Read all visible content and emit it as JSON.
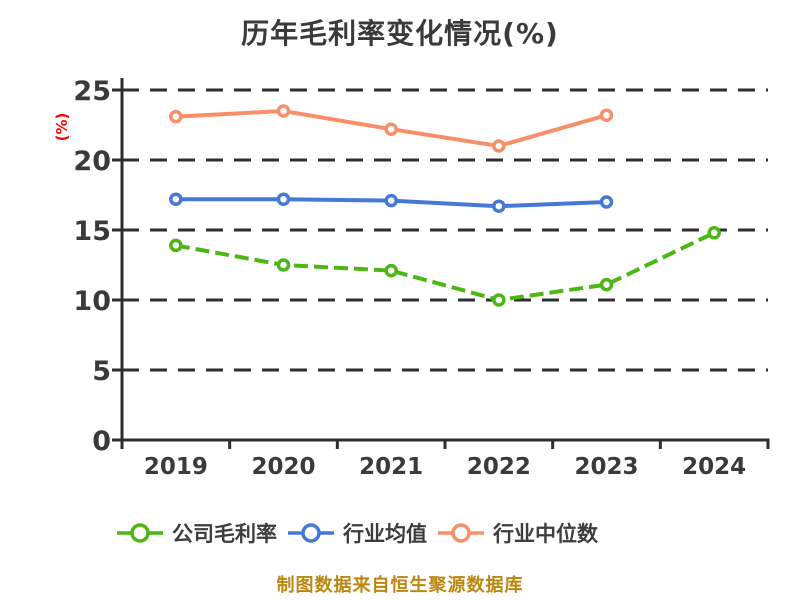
{
  "title": "历年毛利率变化情况(%)",
  "footer": "制图数据来自恒生聚源数据库",
  "colors": {
    "title_text": "#3a3a3a",
    "axis": "#2e2e2e",
    "grid": "#2e2e2e",
    "tick_text": "#3a3a3a",
    "ylabel_text": "#ff0000",
    "footer_text": "#bb8712",
    "marker_fill": "#ffffff"
  },
  "chart_data": {
    "type": "line",
    "title": "历年毛利率变化情况(%)",
    "ylabel": "(%)",
    "xlabel": "",
    "categories": [
      "2019",
      "2020",
      "2021",
      "2022",
      "2023",
      "2024"
    ],
    "series": [
      {
        "name": "公司毛利率",
        "values": [
          13.9,
          12.5,
          12.1,
          10.0,
          11.1,
          14.8
        ],
        "color": "#4cb614",
        "style": "dashed"
      },
      {
        "name": "行业均值",
        "values": [
          17.2,
          17.2,
          17.1,
          16.7,
          17.0,
          null
        ],
        "color": "#4678d8",
        "style": "solid"
      },
      {
        "name": "行业中位数",
        "values": [
          23.1,
          23.5,
          22.2,
          21.0,
          23.2,
          null
        ],
        "color": "#f88f68",
        "style": "solid"
      }
    ],
    "ylim": [
      0,
      25
    ],
    "y_ticks": [
      0,
      5,
      10,
      15,
      20,
      25
    ],
    "grid": true,
    "grid_style": "dashed",
    "legend_position": "bottom",
    "source_note": "制图数据来自恒生聚源数据库"
  }
}
